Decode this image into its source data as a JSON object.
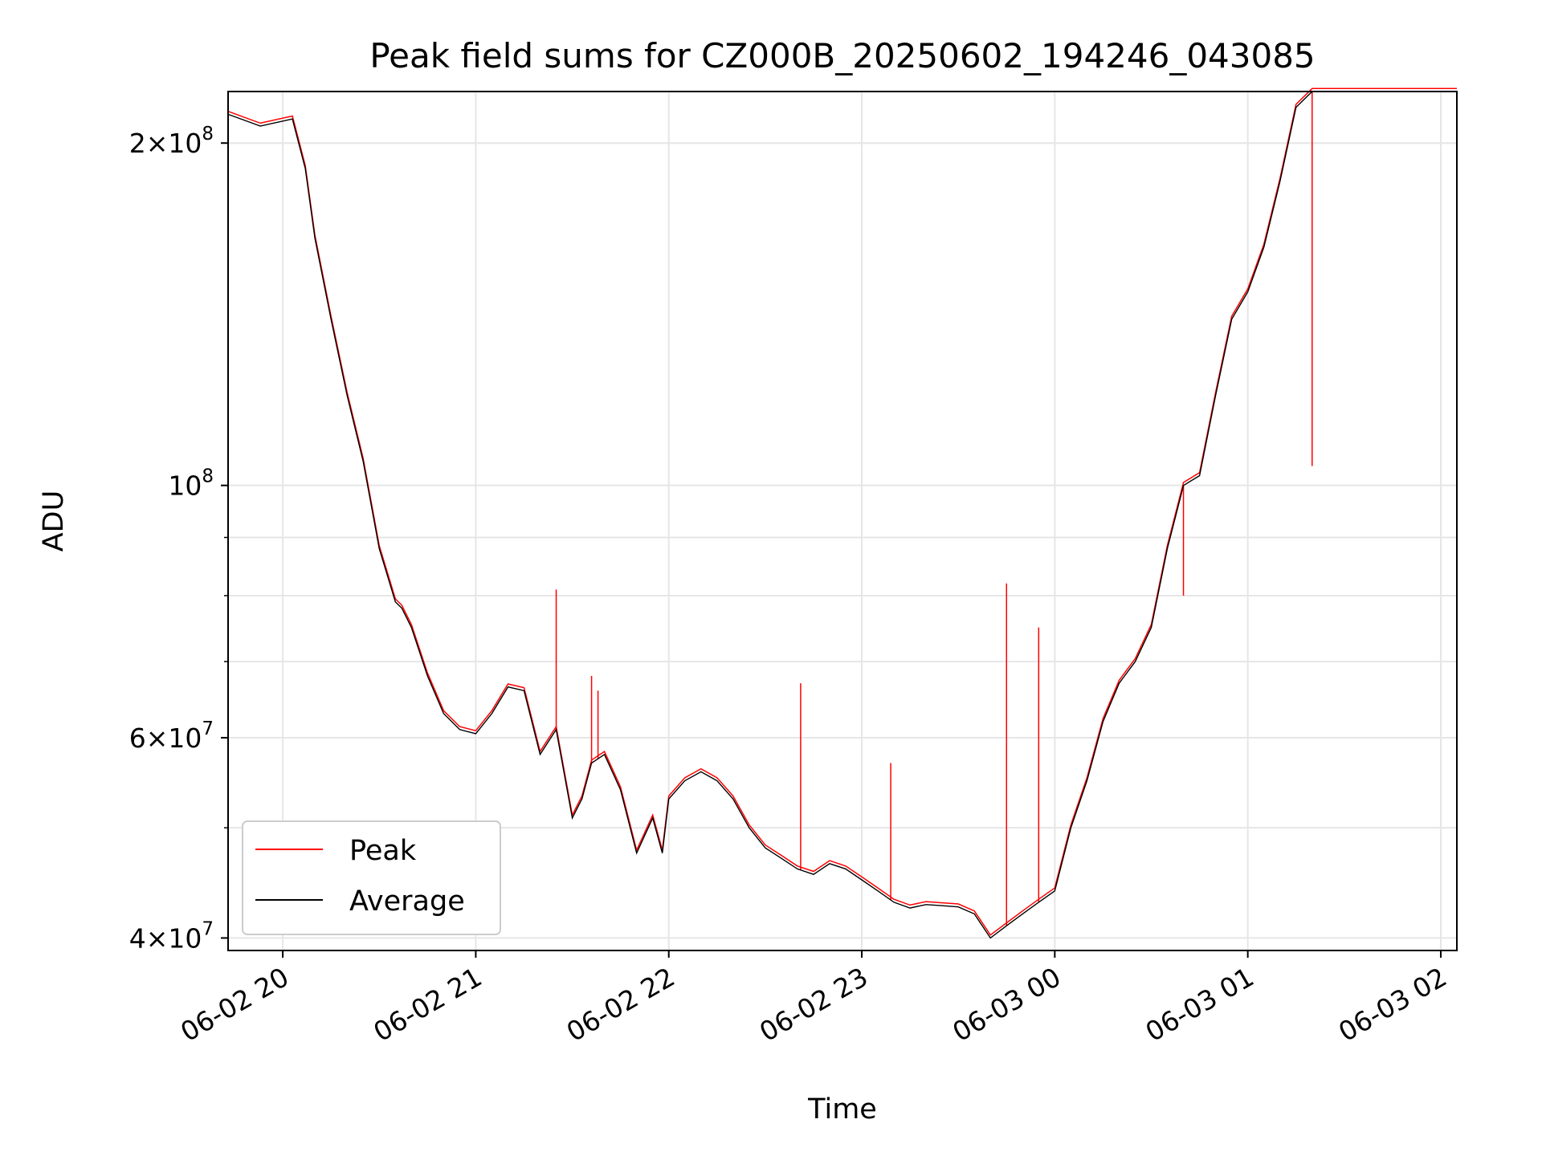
{
  "chart_data": {
    "type": "line",
    "title": "Peak field sums for CZ000B_20250602_194246_043085",
    "xlabel": "Time",
    "ylabel": "ADU",
    "y_scale": "log",
    "ylim": [
      39000000,
      222000000
    ],
    "xlim": [
      "2025-06-02 19:43",
      "2025-06-03 02:05"
    ],
    "x_ticks": [
      "06-02 20",
      "06-02 21",
      "06-02 22",
      "06-02 23",
      "06-03 00",
      "06-03 01",
      "06-03 02"
    ],
    "y_ticks": [
      {
        "value": 40000000,
        "mantissa": "4",
        "exponent": "7"
      },
      {
        "value": 60000000,
        "mantissa": "6",
        "exponent": "7"
      },
      {
        "value": 100000000,
        "mantissa": "",
        "exponent": "8"
      },
      {
        "value": 200000000,
        "mantissa": "2",
        "exponent": "8"
      }
    ],
    "grid": true,
    "legend_position": "lower-left",
    "series": [
      {
        "name": "Average",
        "color": "#000000",
        "x": [
          "2025-06-02 19:43",
          "2025-06-02 19:53",
          "2025-06-02 20:03",
          "2025-06-02 20:07",
          "2025-06-02 20:10",
          "2025-06-02 20:15",
          "2025-06-02 20:20",
          "2025-06-02 20:25",
          "2025-06-02 20:30",
          "2025-06-02 20:35",
          "2025-06-02 20:37",
          "2025-06-02 20:40",
          "2025-06-02 20:45",
          "2025-06-02 20:50",
          "2025-06-02 20:55",
          "2025-06-02 21:00",
          "2025-06-02 21:05",
          "2025-06-02 21:10",
          "2025-06-02 21:15",
          "2025-06-02 21:20",
          "2025-06-02 21:25",
          "2025-06-02 21:30",
          "2025-06-02 21:33",
          "2025-06-02 21:36",
          "2025-06-02 21:40",
          "2025-06-02 21:45",
          "2025-06-02 21:50",
          "2025-06-02 21:55",
          "2025-06-02 21:58",
          "2025-06-02 22:00",
          "2025-06-02 22:05",
          "2025-06-02 22:10",
          "2025-06-02 22:15",
          "2025-06-02 22:20",
          "2025-06-02 22:25",
          "2025-06-02 22:30",
          "2025-06-02 22:35",
          "2025-06-02 22:40",
          "2025-06-02 22:45",
          "2025-06-02 22:50",
          "2025-06-02 22:55",
          "2025-06-02 23:00",
          "2025-06-02 23:05",
          "2025-06-02 23:10",
          "2025-06-02 23:15",
          "2025-06-02 23:20",
          "2025-06-02 23:25",
          "2025-06-02 23:30",
          "2025-06-02 23:35",
          "2025-06-02 23:40",
          "2025-06-02 23:45",
          "2025-06-02 23:50",
          "2025-06-02 23:55",
          "2025-06-03 00:00",
          "2025-06-03 00:05",
          "2025-06-03 00:10",
          "2025-06-03 00:15",
          "2025-06-03 00:20",
          "2025-06-03 00:25",
          "2025-06-03 00:30",
          "2025-06-03 00:35",
          "2025-06-03 00:40",
          "2025-06-03 00:45",
          "2025-06-03 00:50",
          "2025-06-03 00:55",
          "2025-06-03 01:00",
          "2025-06-03 01:05",
          "2025-06-03 01:10",
          "2025-06-03 01:15",
          "2025-06-03 01:20",
          "2025-06-03 01:25",
          "2025-06-03 01:30",
          "2025-06-03 01:35",
          "2025-06-03 01:40",
          "2025-06-03 01:45",
          "2025-06-03 01:50",
          "2025-06-03 01:55",
          "2025-06-03 02:00",
          "2025-06-03 02:05"
        ],
        "values": [
          212000000,
          207000000,
          210000000,
          190000000,
          165000000,
          140000000,
          120000000,
          105000000,
          88000000,
          79000000,
          78000000,
          75000000,
          68000000,
          63000000,
          61000000,
          60500000,
          63000000,
          66500000,
          66000000,
          58000000,
          61000000,
          51000000,
          53000000,
          57000000,
          58000000,
          54000000,
          47500000,
          51000000,
          47500000,
          53000000,
          55000000,
          56000000,
          55000000,
          53000000,
          50000000,
          48000000,
          47000000,
          46000000,
          45500000,
          46500000,
          46000000,
          45000000,
          44000000,
          43000000,
          42500000,
          42800000,
          42700000,
          42600000,
          42000000,
          40000000,
          41000000,
          42000000,
          43000000,
          44000000,
          50000000,
          55000000,
          62000000,
          67000000,
          70000000,
          75000000,
          88000000,
          100000000,
          102000000,
          120000000,
          140000000,
          148000000,
          162000000,
          185000000,
          215000000,
          222000000,
          222000000,
          222000000,
          222000000,
          222000000,
          222000000,
          222000000,
          222000000,
          222000000,
          222000000
        ]
      },
      {
        "name": "Peak",
        "color": "#ff0000",
        "x": [
          "2025-06-02 21:25",
          "2025-06-02 21:36",
          "2025-06-02 21:38",
          "2025-06-02 22:41",
          "2025-06-02 23:09",
          "2025-06-02 23:45",
          "2025-06-02 23:55",
          "2025-06-03 00:40",
          "2025-06-03 01:20"
        ],
        "values": [
          81000000,
          68000000,
          66000000,
          67000000,
          57000000,
          82000000,
          75000000,
          80000000,
          104000000
        ]
      }
    ]
  }
}
